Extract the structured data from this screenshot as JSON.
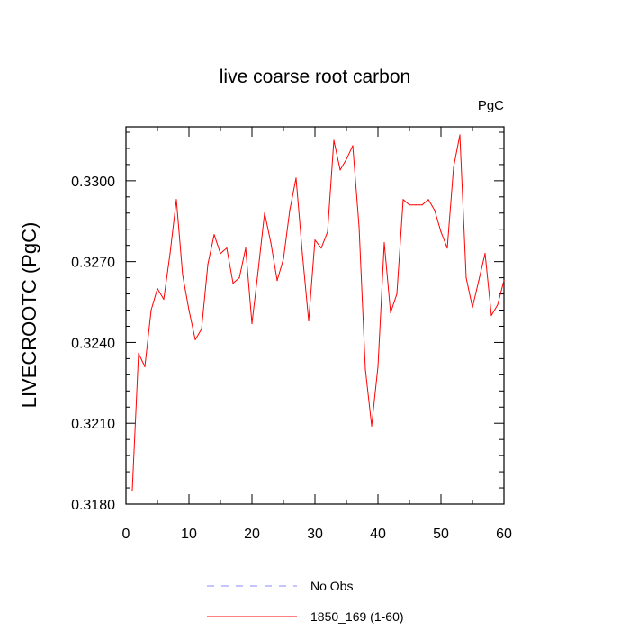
{
  "chart_data": {
    "type": "line",
    "title": "live coarse root carbon",
    "units_label": "PgC",
    "ylabel": "LIVECROOTC  (PgC)",
    "xlabel": "",
    "xlim": [
      0,
      60
    ],
    "ylim": [
      0.318,
      0.332
    ],
    "x_ticks": [
      "0",
      "10",
      "20",
      "30",
      "40",
      "50",
      "60"
    ],
    "y_ticks": [
      "0.3180",
      "0.3210",
      "0.3240",
      "0.3270",
      "0.3300"
    ],
    "grid": false,
    "legend_position": "bottom",
    "legend": [
      {
        "label": "No Obs",
        "style": "dashed",
        "color": "#8888ff"
      },
      {
        "label": "1850_169 (1-60)",
        "style": "solid",
        "color": "#ff0000"
      }
    ],
    "series": [
      {
        "name": "1850_169 (1-60)",
        "color": "#ff0000",
        "x": [
          1,
          2,
          3,
          4,
          5,
          6,
          7,
          8,
          9,
          10,
          11,
          12,
          13,
          14,
          15,
          16,
          17,
          18,
          19,
          20,
          21,
          22,
          23,
          24,
          25,
          26,
          27,
          28,
          29,
          30,
          31,
          32,
          33,
          34,
          35,
          36,
          37,
          38,
          39,
          40,
          41,
          42,
          43,
          44,
          45,
          46,
          47,
          48,
          49,
          50,
          51,
          52,
          53,
          54,
          55,
          56,
          57,
          58,
          59,
          60
        ],
        "values": [
          0.3185,
          0.3236,
          0.3231,
          0.3252,
          0.326,
          0.3256,
          0.3273,
          0.3293,
          0.3265,
          0.3252,
          0.3241,
          0.3245,
          0.3269,
          0.328,
          0.3273,
          0.3275,
          0.3262,
          0.3264,
          0.3275,
          0.3247,
          0.3267,
          0.3288,
          0.3277,
          0.3263,
          0.3271,
          0.3289,
          0.3301,
          0.3273,
          0.3248,
          0.3278,
          0.3275,
          0.3281,
          0.3315,
          0.3304,
          0.3308,
          0.3313,
          0.3283,
          0.323,
          0.3209,
          0.3231,
          0.3277,
          0.3251,
          0.3258,
          0.3293,
          0.3291,
          0.3291,
          0.3291,
          0.3293,
          0.3289,
          0.3281,
          0.3275,
          0.3305,
          0.3317,
          0.3264,
          0.3253,
          0.3263,
          0.3273,
          0.325,
          0.3254,
          0.3263
        ]
      }
    ]
  }
}
